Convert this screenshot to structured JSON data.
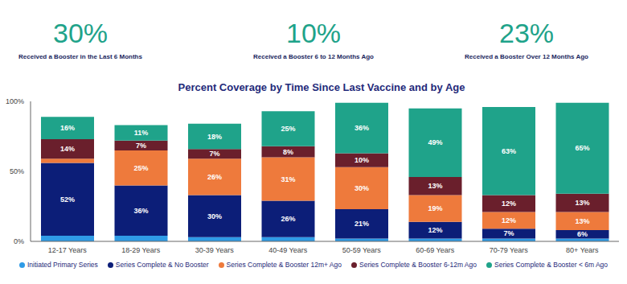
{
  "kpis": [
    {
      "value": "30%",
      "label": "Received a Booster in the Last 6 Months"
    },
    {
      "value": "10%",
      "label": "Received a Booster 6 to 12 Months Ago"
    },
    {
      "value": "23%",
      "label": "Received a Booster Over 12 Months Ago"
    }
  ],
  "chart_data": {
    "type": "bar",
    "title": "Percent Coverage by Time Since Last Vaccine and by Age",
    "stacked": true,
    "legend": "bottom",
    "grid": false,
    "data_labels": true,
    "categories": [
      "12-17 Years",
      "18-29 Years",
      "30-39 Years",
      "40-49 Years",
      "50-59 Years",
      "60-69 Years",
      "70-79 Years",
      "80+ Years"
    ],
    "ylim": [
      0,
      100
    ],
    "yticks": [
      {
        "value": 0,
        "label": "0%"
      },
      {
        "value": 50,
        "label": "50%"
      },
      {
        "value": 100,
        "label": "100%"
      }
    ],
    "series": [
      {
        "name": "Initiated Primary Series",
        "color": "#2f9be6",
        "data_labels": false,
        "values": [
          4,
          4,
          3,
          3,
          2,
          2,
          2,
          2
        ]
      },
      {
        "name": "Series Complete & No Booster",
        "color": "#0c1e78",
        "values": [
          52,
          36,
          30,
          26,
          21,
          12,
          7,
          6
        ],
        "value_labels": [
          "52%",
          "36%",
          "30%",
          "26%",
          "21%",
          "12%",
          "7%",
          "6%"
        ]
      },
      {
        "name": "Series Complete & Booster 12m+ Ago",
        "color": "#ee7a3c",
        "values": [
          3,
          25,
          26,
          31,
          30,
          19,
          12,
          13
        ],
        "value_labels": [
          null,
          "25%",
          "26%",
          "31%",
          "30%",
          "19%",
          "12%",
          "13%"
        ]
      },
      {
        "name": "Series Complete & Booster 6-12m Ago",
        "color": "#6a1f2c",
        "values": [
          14,
          7,
          7,
          8,
          10,
          13,
          12,
          13
        ],
        "value_labels": [
          "14%",
          "7%",
          "7%",
          "8%",
          "10%",
          "13%",
          "12%",
          "13%"
        ]
      },
      {
        "name": "Series Complete & Booster < 6m Ago",
        "color": "#1fa38a",
        "values": [
          16,
          11,
          18,
          25,
          36,
          49,
          63,
          65
        ],
        "value_labels": [
          "16%",
          "11%",
          "18%",
          "25%",
          "36%",
          "49%",
          "63%",
          "65%"
        ]
      }
    ]
  }
}
